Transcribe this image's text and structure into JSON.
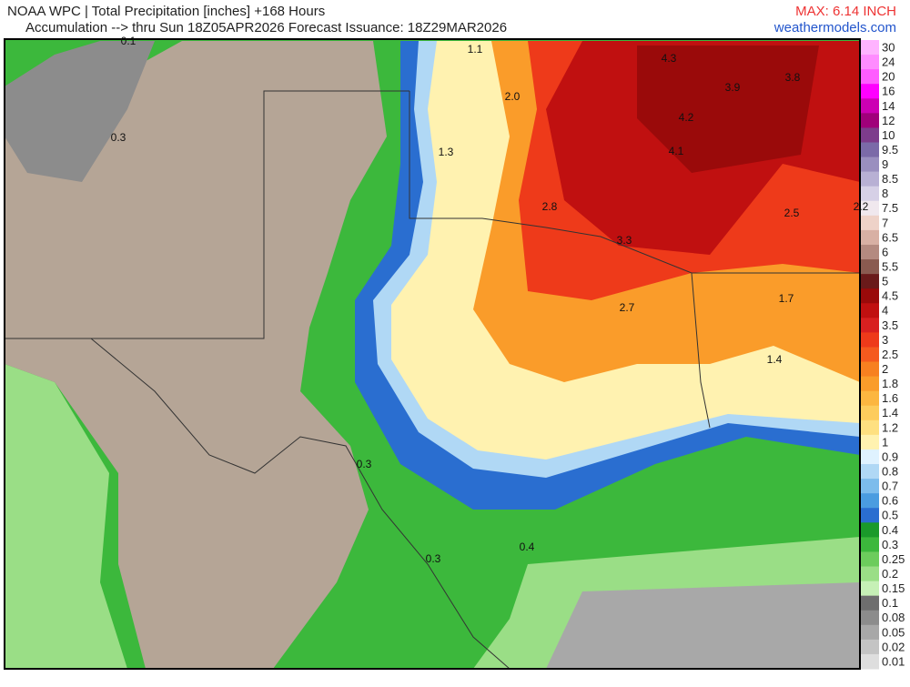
{
  "header": {
    "title": "NOAA WPC | Total Precipitation [inches] +168 Hours",
    "subtitle": "Accumulation --> thru Sun 18Z05APR2026   Forecast Issuance: 18Z29MAR2026",
    "max": "MAX: 6.14 INCH",
    "site": "weathermodels.com"
  },
  "legend": [
    {
      "label": "30",
      "color": "#ffb3ff"
    },
    {
      "label": "24",
      "color": "#ff8cff"
    },
    {
      "label": "20",
      "color": "#ff5cff"
    },
    {
      "label": "16",
      "color": "#ff00ff"
    },
    {
      "label": "14",
      "color": "#cc00b3"
    },
    {
      "label": "12",
      "color": "#a0007a"
    },
    {
      "label": "10",
      "color": "#7d3c8c"
    },
    {
      "label": "9.5",
      "color": "#7b6aa8"
    },
    {
      "label": "9",
      "color": "#9a8fbf"
    },
    {
      "label": "8.5",
      "color": "#b8b0d4"
    },
    {
      "label": "8",
      "color": "#d6d0e6"
    },
    {
      "label": "7.5",
      "color": "#f0e8ee"
    },
    {
      "label": "7",
      "color": "#eed2c8"
    },
    {
      "label": "6.5",
      "color": "#d8b0a4"
    },
    {
      "label": "6",
      "color": "#b48a80"
    },
    {
      "label": "5.5",
      "color": "#8a5a50"
    },
    {
      "label": "5",
      "color": "#6a1a1a"
    },
    {
      "label": "4.5",
      "color": "#9a0a0a"
    },
    {
      "label": "4",
      "color": "#c01010"
    },
    {
      "label": "3.5",
      "color": "#d82020"
    },
    {
      "label": "3",
      "color": "#ee3a1a"
    },
    {
      "label": "2.5",
      "color": "#f55a1e"
    },
    {
      "label": "2",
      "color": "#f78020"
    },
    {
      "label": "1.8",
      "color": "#fa9c2a"
    },
    {
      "label": "1.6",
      "color": "#fcb640"
    },
    {
      "label": "1.4",
      "color": "#fdcc5c"
    },
    {
      "label": "1.2",
      "color": "#fee080"
    },
    {
      "label": "1",
      "color": "#fff2b0"
    },
    {
      "label": "0.9",
      "color": "#dff2ff"
    },
    {
      "label": "0.8",
      "color": "#b0d8f5"
    },
    {
      "label": "0.7",
      "color": "#7cbcec"
    },
    {
      "label": "0.6",
      "color": "#4a9ce0"
    },
    {
      "label": "0.5",
      "color": "#2a6ed0"
    },
    {
      "label": "0.4",
      "color": "#1a9a2a"
    },
    {
      "label": "0.3",
      "color": "#3cb83c"
    },
    {
      "label": "0.25",
      "color": "#6ccc5c"
    },
    {
      "label": "0.2",
      "color": "#9ade86"
    },
    {
      "label": "0.15",
      "color": "#c6f0b6"
    },
    {
      "label": "0.1",
      "color": "#6e6e6e"
    },
    {
      "label": "0.08",
      "color": "#8c8c8c"
    },
    {
      "label": "0.05",
      "color": "#a8a8a8"
    },
    {
      "label": "0.02",
      "color": "#c4c4c4"
    },
    {
      "label": "0.01",
      "color": "#dedede"
    }
  ],
  "map_labels": [
    "0.1",
    "1.1",
    "4.3",
    "2.0",
    "3.9",
    "3.8",
    "4.2",
    "0.3",
    "1.3",
    "4.1",
    "2.8",
    "2.5",
    "2.2",
    "3.3",
    "2.7",
    "1.7",
    "1.4",
    "0.3",
    "0.3",
    "0.4"
  ]
}
